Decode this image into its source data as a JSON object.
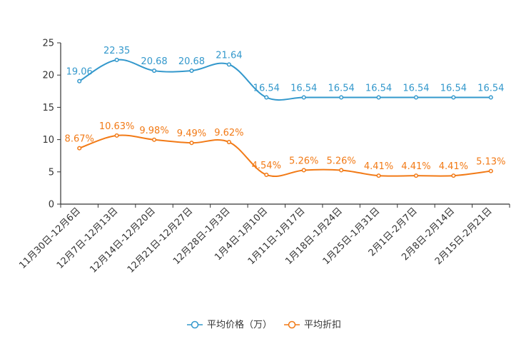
{
  "chart_data": {
    "type": "line",
    "title": "",
    "xlabel": "",
    "ylabel": "",
    "ylim": [
      0,
      25
    ],
    "yticks": [
      "0",
      "5",
      "10",
      "15",
      "20",
      "25"
    ],
    "categories": [
      "11月30日-12月6日",
      "12月7日-12月13日",
      "12月14日-12月20日",
      "12月21日-12月27日",
      "12月28日-1月3日",
      "1月4日-1月10日",
      "1月11日-1月17日",
      "1月18日-1月24日",
      "1月25日-1月31日",
      "2月1日-2月7日",
      "2月8日-2月14日",
      "2月15日-2月21日"
    ],
    "series": [
      {
        "name": "平均价格（万）",
        "color": "#3398cc",
        "values": [
          19.06,
          22.35,
          20.68,
          20.68,
          21.64,
          16.54,
          16.54,
          16.54,
          16.54,
          16.54,
          16.54,
          16.54
        ],
        "labels": [
          "19.06",
          "22.35",
          "20.68",
          "20.68",
          "21.64",
          "16.54",
          "16.54",
          "16.54",
          "16.54",
          "16.54",
          "16.54",
          "16.54"
        ]
      },
      {
        "name": "平均折扣",
        "color": "#f27a16",
        "values": [
          8.67,
          10.63,
          9.98,
          9.49,
          9.62,
          4.54,
          5.26,
          5.26,
          4.41,
          4.41,
          4.41,
          5.13
        ],
        "labels": [
          "8.67%",
          "10.63%",
          "9.98%",
          "9.49%",
          "9.62%",
          "4.54%",
          "5.26%",
          "5.26%",
          "4.41%",
          "4.41%",
          "4.41%",
          "5.13%"
        ]
      }
    ],
    "legend": "bottom-center",
    "grid": false
  }
}
